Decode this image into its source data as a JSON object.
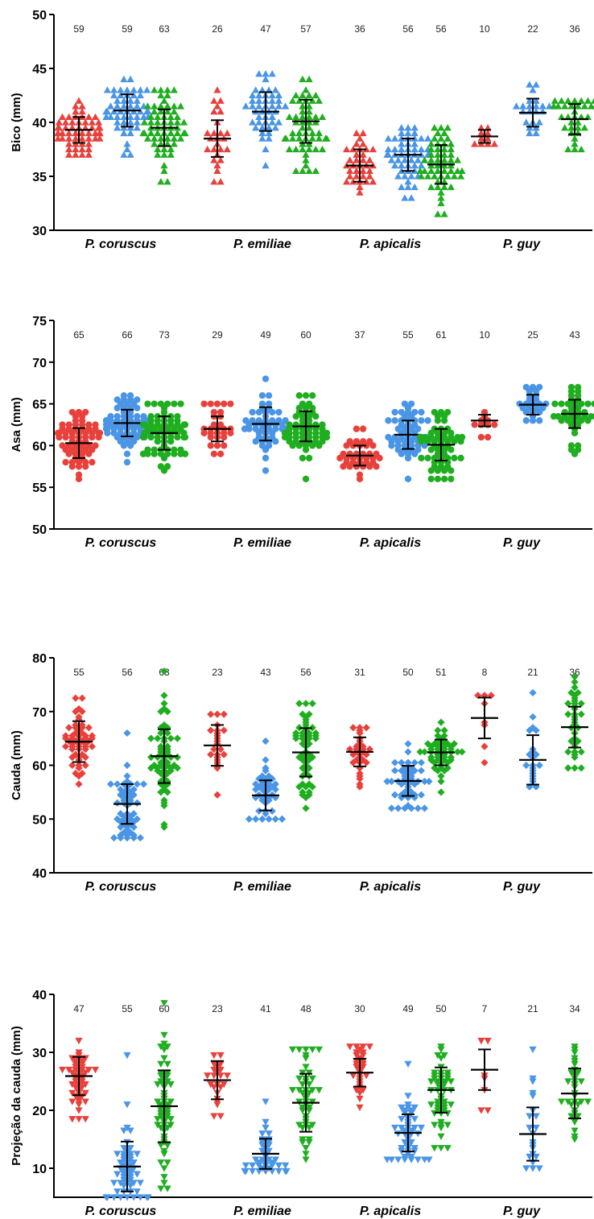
{
  "chart_data": [
    {
      "type": "scatter",
      "ylabel": "Bico  (mm)",
      "ylim": [
        30,
        50
      ],
      "yticks": [
        30,
        35,
        40,
        45,
        50
      ],
      "categories": [
        "P. coruscus",
        "P. emiliae",
        "P. apicalis",
        "P. guy"
      ],
      "marker": "triangle-up",
      "groups": [
        {
          "category": "P. coruscus",
          "series": [
            {
              "color": "#e8413c",
              "n": "59",
              "mean": 39.3,
              "sd": 1.2,
              "min": 37.0,
              "max": 42.0
            },
            {
              "color": "#4a95e6",
              "n": "59",
              "mean": 41.1,
              "sd": 1.5,
              "min": 37.0,
              "max": 44.0
            },
            {
              "color": "#1fae1f",
              "n": "63",
              "mean": 39.5,
              "sd": 1.7,
              "min": 34.5,
              "max": 43.0
            }
          ]
        },
        {
          "category": "P. emiliae",
          "series": [
            {
              "color": "#e8413c",
              "n": "26",
              "mean": 38.5,
              "sd": 1.7,
              "min": 34.5,
              "max": 43.0
            },
            {
              "color": "#4a95e6",
              "n": "47",
              "mean": 41.0,
              "sd": 1.8,
              "min": 36.0,
              "max": 44.5
            },
            {
              "color": "#1fae1f",
              "n": "57",
              "mean": 40.1,
              "sd": 2.0,
              "min": 35.5,
              "max": 44.0
            }
          ]
        },
        {
          "category": "P. apicalis",
          "series": [
            {
              "color": "#e8413c",
              "n": "36",
              "mean": 36.0,
              "sd": 1.5,
              "min": 33.5,
              "max": 39.0
            },
            {
              "color": "#4a95e6",
              "n": "56",
              "mean": 37.0,
              "sd": 1.5,
              "min": 33.0,
              "max": 39.5
            },
            {
              "color": "#1fae1f",
              "n": "56",
              "mean": 36.1,
              "sd": 1.8,
              "min": 31.5,
              "max": 39.5
            }
          ]
        },
        {
          "category": "P. guy",
          "series": [
            {
              "color": "#e8413c",
              "n": "10",
              "mean": 38.7,
              "sd": 0.6,
              "min": 38.0,
              "max": 39.5
            },
            {
              "color": "#4a95e6",
              "n": "22",
              "mean": 40.9,
              "sd": 1.3,
              "min": 39.0,
              "max": 43.5
            },
            {
              "color": "#1fae1f",
              "n": "36",
              "mean": 40.3,
              "sd": 1.4,
              "min": 37.5,
              "max": 42.0
            }
          ]
        }
      ]
    },
    {
      "type": "scatter",
      "ylabel": "Asa (mm)",
      "ylim": [
        50,
        75
      ],
      "yticks": [
        50,
        55,
        60,
        65,
        70,
        75
      ],
      "categories": [
        "P. coruscus",
        "P. emiliae",
        "P. apicalis",
        "P. guy"
      ],
      "marker": "circle",
      "groups": [
        {
          "category": "P. coruscus",
          "series": [
            {
              "color": "#e8413c",
              "n": "65",
              "mean": 60.3,
              "sd": 1.8,
              "min": 56.0,
              "max": 64.0
            },
            {
              "color": "#4a95e6",
              "n": "66",
              "mean": 62.7,
              "sd": 1.6,
              "min": 58.0,
              "max": 66.0
            },
            {
              "color": "#1fae1f",
              "n": "73",
              "mean": 61.5,
              "sd": 2.0,
              "min": 57.0,
              "max": 65.0
            }
          ]
        },
        {
          "category": "P. emiliae",
          "series": [
            {
              "color": "#e8413c",
              "n": "29",
              "mean": 62.0,
              "sd": 1.5,
              "min": 59.0,
              "max": 65.0
            },
            {
              "color": "#4a95e6",
              "n": "49",
              "mean": 62.6,
              "sd": 2.0,
              "min": 57.0,
              "max": 68.0
            },
            {
              "color": "#1fae1f",
              "n": "60",
              "mean": 62.3,
              "sd": 1.8,
              "min": 56.0,
              "max": 66.0
            }
          ]
        },
        {
          "category": "P. apicalis",
          "series": [
            {
              "color": "#e8413c",
              "n": "37",
              "mean": 58.8,
              "sd": 1.2,
              "min": 56.0,
              "max": 62.0
            },
            {
              "color": "#4a95e6",
              "n": "55",
              "mean": 61.3,
              "sd": 1.7,
              "min": 56.0,
              "max": 65.0
            },
            {
              "color": "#1fae1f",
              "n": "61",
              "mean": 60.1,
              "sd": 1.9,
              "min": 56.0,
              "max": 64.0
            }
          ]
        },
        {
          "category": "P. guy",
          "series": [
            {
              "color": "#e8413c",
              "n": "10",
              "mean": 63.0,
              "sd": 0.7,
              "min": 61.0,
              "max": 64.0
            },
            {
              "color": "#4a95e6",
              "n": "25",
              "mean": 64.9,
              "sd": 1.2,
              "min": 63.0,
              "max": 67.0
            },
            {
              "color": "#1fae1f",
              "n": "43",
              "mean": 63.8,
              "sd": 1.7,
              "min": 59.0,
              "max": 67.0
            }
          ]
        }
      ]
    },
    {
      "type": "scatter",
      "ylabel": "Cauda  (mm)",
      "ylim": [
        40,
        80
      ],
      "yticks": [
        40,
        50,
        60,
        70,
        80
      ],
      "categories": [
        "P. coruscus",
        "P. emiliae",
        "P. apicalis",
        "P. guy"
      ],
      "marker": "diamond",
      "groups": [
        {
          "category": "P. coruscus",
          "series": [
            {
              "color": "#e8413c",
              "n": "55",
              "mean": 64.4,
              "sd": 3.8,
              "min": 56.5,
              "max": 72.5
            },
            {
              "color": "#4a95e6",
              "n": "56",
              "mean": 52.8,
              "sd": 3.7,
              "min": 46.5,
              "max": 66.0
            },
            {
              "color": "#1fae1f",
              "n": "63",
              "mean": 61.7,
              "sd": 5.0,
              "min": 48.5,
              "max": 77.5
            }
          ]
        },
        {
          "category": "P. emiliae",
          "series": [
            {
              "color": "#e8413c",
              "n": "23",
              "mean": 63.7,
              "sd": 3.8,
              "min": 54.5,
              "max": 69.5
            },
            {
              "color": "#4a95e6",
              "n": "43",
              "mean": 54.4,
              "sd": 2.8,
              "min": 50.0,
              "max": 64.5
            },
            {
              "color": "#1fae1f",
              "n": "56",
              "mean": 62.4,
              "sd": 4.5,
              "min": 52.0,
              "max": 71.5
            }
          ]
        },
        {
          "category": "P. apicalis",
          "series": [
            {
              "color": "#e8413c",
              "n": "31",
              "mean": 62.5,
              "sd": 2.7,
              "min": 56.0,
              "max": 67.0
            },
            {
              "color": "#4a95e6",
              "n": "50",
              "mean": 57.1,
              "sd": 2.8,
              "min": 52.0,
              "max": 64.0
            },
            {
              "color": "#1fae1f",
              "n": "51",
              "mean": 62.4,
              "sd": 2.4,
              "min": 55.0,
              "max": 68.0
            }
          ]
        },
        {
          "category": "P. guy",
          "series": [
            {
              "color": "#e8413c",
              "n": "8",
              "mean": 68.8,
              "sd": 3.8,
              "min": 60.5,
              "max": 73.0
            },
            {
              "color": "#4a95e6",
              "n": "21",
              "mean": 61.0,
              "sd": 4.6,
              "min": 56.0,
              "max": 73.5
            },
            {
              "color": "#1fae1f",
              "n": "36",
              "mean": 67.1,
              "sd": 3.8,
              "min": 59.5,
              "max": 76.5
            }
          ]
        }
      ]
    },
    {
      "type": "scatter",
      "ylabel": "Projeção da cauda (mm)",
      "ylim": [
        5,
        40
      ],
      "yticks": [
        10,
        20,
        30,
        40
      ],
      "categories": [
        "P. coruscus",
        "P. emiliae",
        "P. apicalis",
        "P. guy"
      ],
      "marker": "triangle-down",
      "groups": [
        {
          "category": "P. coruscus",
          "series": [
            {
              "color": "#e8413c",
              "n": "47",
              "mean": 25.9,
              "sd": 3.3,
              "min": 18.5,
              "max": 32.0
            },
            {
              "color": "#4a95e6",
              "n": "55",
              "mean": 10.3,
              "sd": 4.3,
              "min": 5.0,
              "max": 29.5
            },
            {
              "color": "#1fae1f",
              "n": "60",
              "mean": 20.7,
              "sd": 6.2,
              "min": 6.5,
              "max": 38.5
            }
          ]
        },
        {
          "category": "P. emiliae",
          "series": [
            {
              "color": "#e8413c",
              "n": "23",
              "mean": 25.2,
              "sd": 3.3,
              "min": 19.0,
              "max": 29.5
            },
            {
              "color": "#4a95e6",
              "n": "41",
              "mean": 12.5,
              "sd": 2.6,
              "min": 9.5,
              "max": 21.5
            },
            {
              "color": "#1fae1f",
              "n": "48",
              "mean": 21.3,
              "sd": 5.0,
              "min": 11.5,
              "max": 30.5
            }
          ]
        },
        {
          "category": "P. apicalis",
          "series": [
            {
              "color": "#e8413c",
              "n": "30",
              "mean": 26.5,
              "sd": 2.4,
              "min": 20.5,
              "max": 31.0
            },
            {
              "color": "#4a95e6",
              "n": "49",
              "mean": 16.1,
              "sd": 3.2,
              "min": 11.5,
              "max": 28.0
            },
            {
              "color": "#1fae1f",
              "n": "50",
              "mean": 23.5,
              "sd": 3.9,
              "min": 13.5,
              "max": 31.0
            }
          ]
        },
        {
          "category": "P. guy",
          "series": [
            {
              "color": "#e8413c",
              "n": "7",
              "mean": 27.0,
              "sd": 3.5,
              "min": 20.0,
              "max": 32.0
            },
            {
              "color": "#4a95e6",
              "n": "21",
              "mean": 15.9,
              "sd": 4.6,
              "min": 10.0,
              "max": 30.5
            },
            {
              "color": "#1fae1f",
              "n": "34",
              "mean": 22.9,
              "sd": 4.3,
              "min": 15.0,
              "max": 31.0
            }
          ]
        }
      ]
    }
  ]
}
